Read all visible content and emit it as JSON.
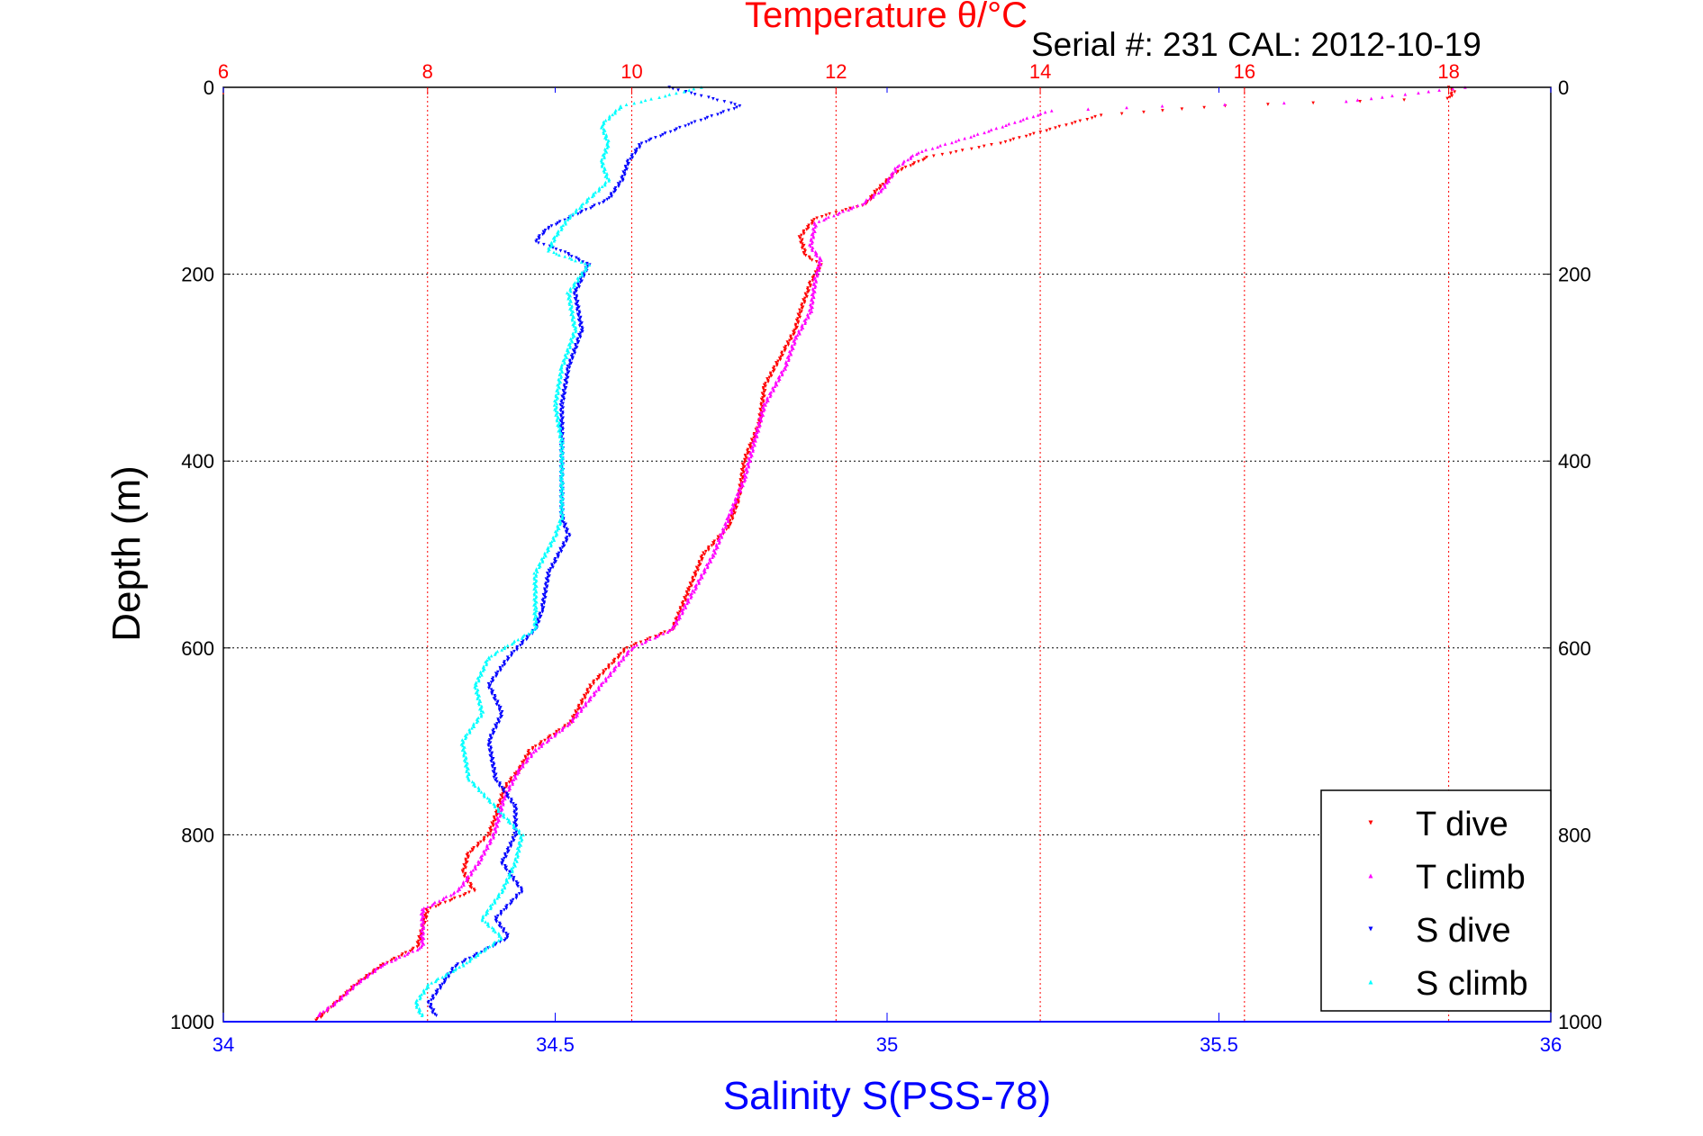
{
  "chart_data": {
    "type": "scatter",
    "title": "Temperature θ/°C",
    "subtitle": "Serial #: 231  CAL: 2012-10-19",
    "ylabel": "Depth (m)",
    "xlabel_bottom": "Salinity S(PSS-78)",
    "xlabel_top": "Temperature θ/°C",
    "ylim": [
      0,
      1000
    ],
    "y_reversed": true,
    "y_ticks": [
      "0",
      "200",
      "400",
      "600",
      "800",
      "1000"
    ],
    "x_bottom_lim": [
      34,
      36
    ],
    "x_bottom_ticks": [
      "34",
      "34.5",
      "35",
      "35.5",
      "36"
    ],
    "x_top_lim": [
      6,
      19
    ],
    "x_top_ticks": [
      "6",
      "8",
      "10",
      "12",
      "14",
      "16",
      "18"
    ],
    "grid": true,
    "legend_position": "bottom-right",
    "colors": {
      "temperature_axis": "#ff0000",
      "salinity_axis": "#0000ff",
      "axis": "#000000"
    },
    "series": [
      {
        "name": "T dive",
        "axis": "top",
        "marker": "down-triangle",
        "color": "#ff0000",
        "points": [
          [
            18.0,
            0
          ],
          [
            18.05,
            5
          ],
          [
            18.0,
            12
          ],
          [
            15.8,
            20
          ],
          [
            14.6,
            30
          ],
          [
            14.1,
            45
          ],
          [
            13.6,
            60
          ],
          [
            12.9,
            75
          ],
          [
            12.6,
            90
          ],
          [
            12.4,
            110
          ],
          [
            12.3,
            125
          ],
          [
            11.8,
            140
          ],
          [
            11.65,
            160
          ],
          [
            11.7,
            180
          ],
          [
            11.85,
            190
          ],
          [
            11.75,
            210
          ],
          [
            11.65,
            240
          ],
          [
            11.6,
            260
          ],
          [
            11.45,
            290
          ],
          [
            11.3,
            320
          ],
          [
            11.25,
            360
          ],
          [
            11.1,
            400
          ],
          [
            11.05,
            440
          ],
          [
            10.95,
            470
          ],
          [
            10.7,
            500
          ],
          [
            10.55,
            540
          ],
          [
            10.4,
            580
          ],
          [
            9.95,
            600
          ],
          [
            9.6,
            640
          ],
          [
            9.4,
            680
          ],
          [
            9.0,
            710
          ],
          [
            8.9,
            730
          ],
          [
            8.75,
            750
          ],
          [
            8.7,
            770
          ],
          [
            8.6,
            800
          ],
          [
            8.4,
            820
          ],
          [
            8.35,
            840
          ],
          [
            8.45,
            860
          ],
          [
            8.0,
            880
          ],
          [
            7.95,
            900
          ],
          [
            7.9,
            920
          ],
          [
            7.55,
            940
          ],
          [
            7.3,
            960
          ],
          [
            7.1,
            980
          ],
          [
            6.9,
            1000
          ]
        ]
      },
      {
        "name": "T climb",
        "axis": "top",
        "marker": "up-triangle",
        "color": "#ff00ff",
        "points": [
          [
            18.15,
            0
          ],
          [
            17.0,
            15
          ],
          [
            15.2,
            20
          ],
          [
            14.1,
            25
          ],
          [
            13.4,
            50
          ],
          [
            12.8,
            70
          ],
          [
            12.6,
            85
          ],
          [
            12.45,
            110
          ],
          [
            12.25,
            125
          ],
          [
            11.8,
            145
          ],
          [
            11.75,
            170
          ],
          [
            11.85,
            185
          ],
          [
            11.8,
            205
          ],
          [
            11.75,
            240
          ],
          [
            11.6,
            270
          ],
          [
            11.5,
            300
          ],
          [
            11.3,
            340
          ],
          [
            11.2,
            380
          ],
          [
            11.1,
            420
          ],
          [
            10.95,
            460
          ],
          [
            10.8,
            500
          ],
          [
            10.6,
            540
          ],
          [
            10.4,
            580
          ],
          [
            10.0,
            600
          ],
          [
            9.7,
            640
          ],
          [
            9.4,
            680
          ],
          [
            9.05,
            710
          ],
          [
            8.9,
            730
          ],
          [
            8.75,
            760
          ],
          [
            8.7,
            780
          ],
          [
            8.65,
            800
          ],
          [
            8.5,
            830
          ],
          [
            8.3,
            860
          ],
          [
            7.95,
            880
          ],
          [
            7.95,
            900
          ],
          [
            7.95,
            920
          ],
          [
            7.55,
            940
          ],
          [
            7.3,
            960
          ],
          [
            7.1,
            980
          ],
          [
            6.9,
            995
          ]
        ]
      },
      {
        "name": "S dive",
        "axis": "bottom",
        "marker": "down-triangle",
        "color": "#0000ff",
        "points": [
          [
            34.67,
            0
          ],
          [
            34.78,
            20
          ],
          [
            34.7,
            40
          ],
          [
            34.63,
            60
          ],
          [
            34.61,
            80
          ],
          [
            34.6,
            100
          ],
          [
            34.58,
            120
          ],
          [
            34.49,
            150
          ],
          [
            34.47,
            165
          ],
          [
            34.51,
            175
          ],
          [
            34.55,
            190
          ],
          [
            34.53,
            220
          ],
          [
            34.54,
            260
          ],
          [
            34.52,
            300
          ],
          [
            34.51,
            340
          ],
          [
            34.51,
            380
          ],
          [
            34.51,
            420
          ],
          [
            34.51,
            460
          ],
          [
            34.52,
            480
          ],
          [
            34.49,
            520
          ],
          [
            34.48,
            560
          ],
          [
            34.47,
            580
          ],
          [
            34.43,
            610
          ],
          [
            34.4,
            640
          ],
          [
            34.42,
            670
          ],
          [
            34.4,
            700
          ],
          [
            34.41,
            740
          ],
          [
            34.44,
            770
          ],
          [
            34.44,
            800
          ],
          [
            34.42,
            830
          ],
          [
            34.45,
            860
          ],
          [
            34.41,
            890
          ],
          [
            34.43,
            910
          ],
          [
            34.35,
            940
          ],
          [
            34.33,
            960
          ],
          [
            34.31,
            980
          ],
          [
            34.32,
            995
          ]
        ]
      },
      {
        "name": "S climb",
        "axis": "bottom",
        "marker": "up-triangle",
        "color": "#00ffff",
        "points": [
          [
            34.72,
            0
          ],
          [
            34.6,
            20
          ],
          [
            34.57,
            40
          ],
          [
            34.58,
            60
          ],
          [
            34.57,
            80
          ],
          [
            34.58,
            100
          ],
          [
            34.55,
            120
          ],
          [
            34.52,
            140
          ],
          [
            34.5,
            160
          ],
          [
            34.49,
            175
          ],
          [
            34.55,
            190
          ],
          [
            34.52,
            220
          ],
          [
            34.53,
            260
          ],
          [
            34.51,
            300
          ],
          [
            34.5,
            340
          ],
          [
            34.51,
            380
          ],
          [
            34.51,
            420
          ],
          [
            34.51,
            460
          ],
          [
            34.5,
            480
          ],
          [
            34.47,
            520
          ],
          [
            34.47,
            560
          ],
          [
            34.47,
            580
          ],
          [
            34.4,
            610
          ],
          [
            34.38,
            640
          ],
          [
            34.39,
            670
          ],
          [
            34.36,
            700
          ],
          [
            34.37,
            740
          ],
          [
            34.41,
            770
          ],
          [
            34.45,
            800
          ],
          [
            34.44,
            830
          ],
          [
            34.42,
            860
          ],
          [
            34.39,
            890
          ],
          [
            34.42,
            910
          ],
          [
            34.36,
            940
          ],
          [
            34.31,
            960
          ],
          [
            34.29,
            980
          ],
          [
            34.3,
            995
          ]
        ]
      }
    ]
  }
}
